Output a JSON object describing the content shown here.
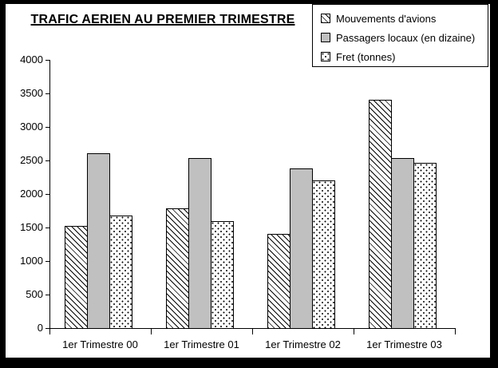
{
  "window": {
    "background": "#ffffff",
    "frame_color": "#000000"
  },
  "chart_data": {
    "type": "bar",
    "title": "TRAFIC AERIEN AU PREMIER TRIMESTRE",
    "categories": [
      "1er Trimestre 00",
      "1er Trimestre 01",
      "1er Trimestre 02",
      "1er Trimestre 03"
    ],
    "series": [
      {
        "name": "Mouvements d'avions",
        "pattern": "diagonal-hatch",
        "values": [
          1520,
          1780,
          1400,
          3400
        ]
      },
      {
        "name": "Passagers locaux (en dizaine)",
        "pattern": "solid",
        "color": "#c0c0c0",
        "values": [
          2610,
          2540,
          2380,
          2530
        ]
      },
      {
        "name": "Fret (tonnes)",
        "pattern": "dots",
        "values": [
          1680,
          1590,
          2200,
          2460
        ]
      }
    ],
    "xlabel": "",
    "ylabel": "",
    "ylim": [
      0,
      4000
    ],
    "yticks": [
      0,
      500,
      1000,
      1500,
      2000,
      2500,
      3000,
      3500,
      4000
    ],
    "grid": false,
    "legend_position": "top-right",
    "colors": {
      "bar_gray": "#c0c0c0",
      "pattern_ink": "#000000",
      "plot_background": "#ffffff",
      "frame": "#000000"
    }
  }
}
